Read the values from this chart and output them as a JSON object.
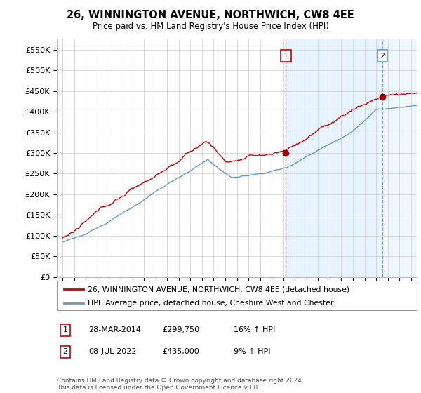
{
  "title": "26, WINNINGTON AVENUE, NORTHWICH, CW8 4EE",
  "subtitle": "Price paid vs. HM Land Registry's House Price Index (HPI)",
  "ylabel_ticks": [
    "£0",
    "£50K",
    "£100K",
    "£150K",
    "£200K",
    "£250K",
    "£300K",
    "£350K",
    "£400K",
    "£450K",
    "£500K",
    "£550K"
  ],
  "ytick_values": [
    0,
    50000,
    100000,
    150000,
    200000,
    250000,
    300000,
    350000,
    400000,
    450000,
    500000,
    550000
  ],
  "ylim": [
    0,
    575000
  ],
  "sale1_date": "28-MAR-2014",
  "sale1_price": 299750,
  "sale1_hpi_pct": "16%",
  "sale2_date": "08-JUL-2022",
  "sale2_price": 435000,
  "sale2_hpi_pct": "9%",
  "legend_line1": "26, WINNINGTON AVENUE, NORTHWICH, CW8 4EE (detached house)",
  "legend_line2": "HPI: Average price, detached house, Cheshire West and Chester",
  "footer": "Contains HM Land Registry data © Crown copyright and database right 2024.\nThis data is licensed under the Open Government Licence v3.0.",
  "line_color_red": "#cc0000",
  "line_color_blue": "#6699cc",
  "vline1_color": "#cc0000",
  "vline2_color": "#6699cc",
  "marker_color_red": "#990000",
  "background_color": "#ffffff",
  "grid_color": "#cccccc",
  "shade_color": "#ddeeff",
  "sale1_x": 2014.23,
  "sale2_x": 2022.54,
  "xmin": 1994.5,
  "xmax": 2025.5
}
